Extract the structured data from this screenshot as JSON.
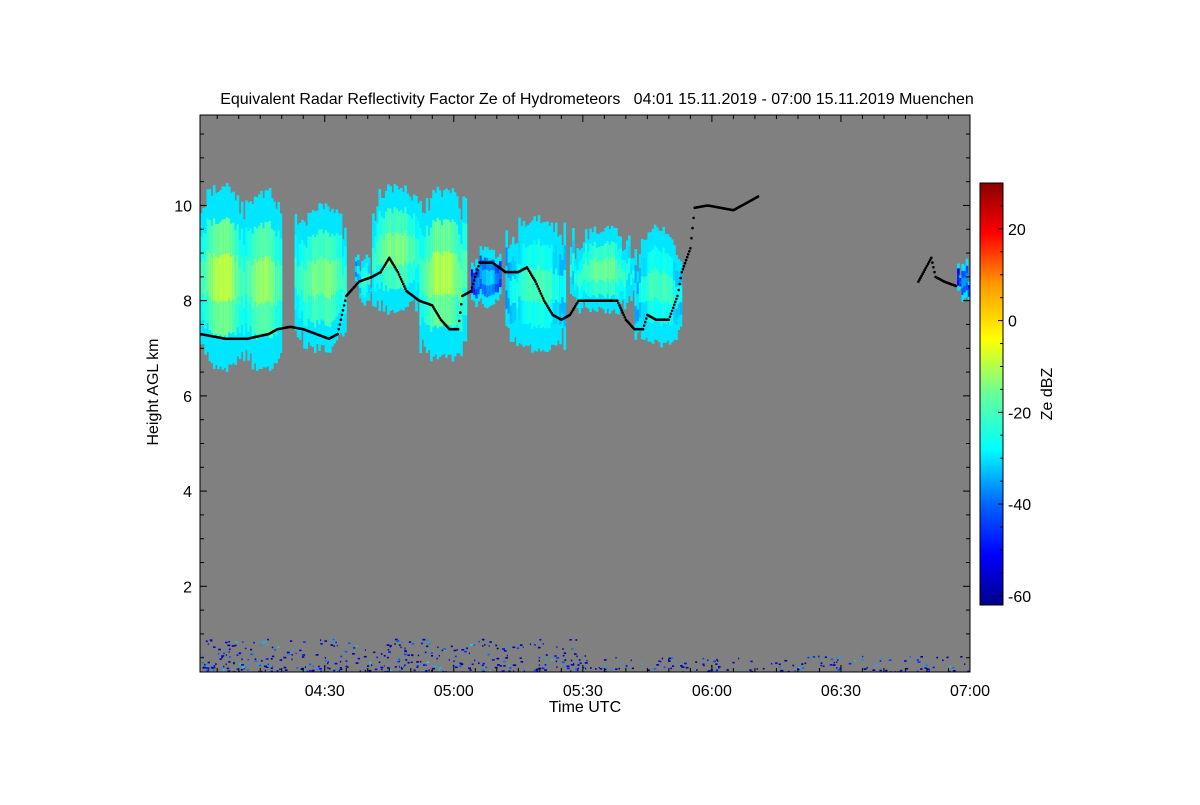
{
  "chart_data": {
    "type": "heatmap",
    "title": "Equivalent Radar Reflectivity Factor Ze of Hydrometeors   04:01 15.11.2019 - 07:00 15.11.2019 Muenchen",
    "xlabel": "Time UTC",
    "ylabel": "Height AGL km",
    "x_range": [
      "04:01",
      "07:00"
    ],
    "x_ticks": [
      "04:30",
      "05:00",
      "05:30",
      "06:00",
      "06:30",
      "07:00"
    ],
    "y_range": [
      0.2,
      11.9
    ],
    "y_ticks": [
      2,
      4,
      6,
      8,
      10
    ],
    "colorbar": {
      "label": "Ze dBZ",
      "range": [
        -62,
        30
      ],
      "ticks": [
        -60,
        -40,
        -20,
        0,
        20
      ],
      "colormap": "jet"
    },
    "no_data_color": "#808080",
    "cloud_regions": [
      {
        "t_start": "04:01",
        "t_end": "04:11",
        "base_km": 6.5,
        "top_km": 10.5,
        "peak_dbz": -8
      },
      {
        "t_start": "04:11",
        "t_end": "04:20",
        "base_km": 6.5,
        "top_km": 10.4,
        "peak_dbz": -10
      },
      {
        "t_start": "04:23",
        "t_end": "04:35",
        "base_km": 6.9,
        "top_km": 10.1,
        "peak_dbz": -12
      },
      {
        "t_start": "04:37",
        "t_end": "04:41",
        "base_km": 7.8,
        "top_km": 9.0,
        "peak_dbz": -20
      },
      {
        "t_start": "04:41",
        "t_end": "04:52",
        "base_km": 7.7,
        "top_km": 10.5,
        "peak_dbz": -12
      },
      {
        "t_start": "04:52",
        "t_end": "05:03",
        "base_km": 6.7,
        "top_km": 10.4,
        "peak_dbz": -8
      },
      {
        "t_start": "05:04",
        "t_end": "05:11",
        "base_km": 7.8,
        "top_km": 9.3,
        "peak_dbz": -30
      },
      {
        "t_start": "05:12",
        "t_end": "05:26",
        "base_km": 6.9,
        "top_km": 9.8,
        "peak_dbz": -18
      },
      {
        "t_start": "05:27",
        "t_end": "05:42",
        "base_km": 7.7,
        "top_km": 9.6,
        "peak_dbz": -14
      },
      {
        "t_start": "05:42",
        "t_end": "05:53",
        "base_km": 7.0,
        "top_km": 9.6,
        "peak_dbz": -18
      },
      {
        "t_start": "06:57",
        "t_end": "07:00",
        "base_km": 7.9,
        "top_km": 8.9,
        "peak_dbz": -35
      }
    ],
    "cloud_base_series": {
      "color": "#000000",
      "points": [
        [
          "04:01",
          7.3
        ],
        [
          "04:07",
          7.2
        ],
        [
          "04:12",
          7.2
        ],
        [
          "04:17",
          7.3
        ],
        [
          "04:19",
          7.4
        ],
        [
          "04:22",
          7.45
        ],
        [
          "04:25",
          7.4
        ],
        [
          "04:28",
          7.3
        ],
        [
          "04:31",
          7.2
        ],
        [
          "04:33",
          7.3
        ],
        [
          "04:35",
          8.1
        ],
        [
          "04:38",
          8.4
        ],
        [
          "04:41",
          8.5
        ],
        [
          "04:43",
          8.6
        ],
        [
          "04:45",
          8.9
        ],
        [
          "04:47",
          8.6
        ],
        [
          "04:49",
          8.2
        ],
        [
          "04:52",
          8.0
        ],
        [
          "04:55",
          7.9
        ],
        [
          "04:57",
          7.6
        ],
        [
          "04:59",
          7.4
        ],
        [
          "05:01",
          7.4
        ],
        [
          "05:02",
          8.1
        ],
        [
          "05:04",
          8.2
        ],
        [
          "05:06",
          8.8
        ],
        [
          "05:09",
          8.8
        ],
        [
          "05:12",
          8.6
        ],
        [
          "05:15",
          8.6
        ],
        [
          "05:17",
          8.7
        ],
        [
          "05:19",
          8.4
        ],
        [
          "05:21",
          8.0
        ],
        [
          "05:23",
          7.7
        ],
        [
          "05:25",
          7.6
        ],
        [
          "05:27",
          7.7
        ],
        [
          "05:29",
          8.0
        ],
        [
          "05:34",
          8.0
        ],
        [
          "05:38",
          8.0
        ],
        [
          "05:40",
          7.6
        ],
        [
          "05:42",
          7.4
        ],
        [
          "05:44",
          7.4
        ],
        [
          "05:45",
          7.7
        ],
        [
          "05:47",
          7.6
        ],
        [
          "05:50",
          7.6
        ],
        [
          "05:52",
          8.1
        ],
        [
          "05:53",
          8.6
        ],
        [
          "05:55",
          9.1
        ],
        [
          "05:56",
          9.95
        ],
        [
          "05:59",
          10.0
        ],
        [
          "06:02",
          9.95
        ],
        [
          "06:05",
          9.9
        ],
        [
          "06:07",
          10.0
        ],
        [
          "06:09",
          10.1
        ],
        [
          "06:11",
          10.2
        ],
        [
          "06:48",
          8.4
        ],
        [
          "06:51",
          8.9
        ],
        [
          "06:52",
          8.5
        ],
        [
          "06:54",
          8.4
        ],
        [
          "06:57",
          8.3
        ]
      ]
    },
    "surface_clutter": {
      "height_km": [
        0.2,
        0.9
      ],
      "dbz_range": [
        -60,
        -30
      ]
    }
  }
}
